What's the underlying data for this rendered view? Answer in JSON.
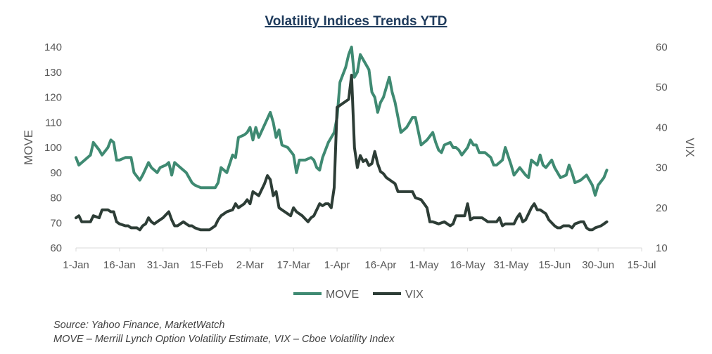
{
  "chart_data": {
    "type": "line",
    "title": "Volatility Indices Trends YTD",
    "x_tick_labels": [
      "1-Jan",
      "16-Jan",
      "31-Jan",
      "15-Feb",
      "2-Mar",
      "17-Mar",
      "1-Apr",
      "16-Apr",
      "1-May",
      "16-May",
      "31-May",
      "15-Jun",
      "30-Jun",
      "15-Jul"
    ],
    "y_left": {
      "label": "MOVE",
      "ticks": [
        60,
        70,
        80,
        90,
        100,
        110,
        120,
        130,
        140
      ],
      "range": [
        60,
        140
      ]
    },
    "y_right": {
      "label": "VIX",
      "ticks": [
        10,
        20,
        30,
        40,
        50,
        60
      ],
      "range": [
        10,
        60
      ]
    },
    "x_range_days": [
      0,
      195
    ],
    "legend_position": "bottom",
    "grid": false,
    "series": [
      {
        "name": "MOVE",
        "axis": "left",
        "color": "#3f8a72",
        "points": [
          [
            0,
            96
          ],
          [
            1,
            93
          ],
          [
            3,
            95
          ],
          [
            5,
            97
          ],
          [
            6,
            102
          ],
          [
            8,
            99
          ],
          [
            9,
            97
          ],
          [
            11,
            100
          ],
          [
            12,
            103
          ],
          [
            13,
            102
          ],
          [
            14,
            95
          ],
          [
            15,
            95
          ],
          [
            17,
            96
          ],
          [
            19,
            96
          ],
          [
            20,
            90
          ],
          [
            22,
            87
          ],
          [
            23,
            89
          ],
          [
            25,
            94
          ],
          [
            26,
            92
          ],
          [
            28,
            90
          ],
          [
            29,
            92
          ],
          [
            31,
            93
          ],
          [
            32,
            94
          ],
          [
            33,
            89
          ],
          [
            34,
            94
          ],
          [
            36,
            92
          ],
          [
            38,
            90
          ],
          [
            40,
            86
          ],
          [
            41,
            85
          ],
          [
            43,
            84
          ],
          [
            45,
            84
          ],
          [
            47,
            84
          ],
          [
            48,
            84
          ],
          [
            49,
            86
          ],
          [
            50,
            92
          ],
          [
            52,
            90
          ],
          [
            54,
            97
          ],
          [
            55,
            96
          ],
          [
            56,
            104
          ],
          [
            58,
            105
          ],
          [
            59,
            106
          ],
          [
            60,
            108
          ],
          [
            61,
            103
          ],
          [
            62,
            108
          ],
          [
            63,
            104
          ],
          [
            65,
            109
          ],
          [
            67,
            114
          ],
          [
            68,
            110
          ],
          [
            69,
            104
          ],
          [
            70,
            107
          ],
          [
            71,
            101
          ],
          [
            73,
            100
          ],
          [
            75,
            97
          ],
          [
            76,
            90
          ],
          [
            77,
            95
          ],
          [
            79,
            95
          ],
          [
            81,
            96
          ],
          [
            82,
            95
          ],
          [
            83,
            92
          ],
          [
            84,
            91
          ],
          [
            85,
            96
          ],
          [
            87,
            102
          ],
          [
            89,
            106
          ],
          [
            90,
            112
          ],
          [
            91,
            126
          ],
          [
            93,
            132
          ],
          [
            94,
            137
          ],
          [
            95,
            140
          ],
          [
            96,
            128
          ],
          [
            97,
            130
          ],
          [
            98,
            137
          ],
          [
            100,
            133
          ],
          [
            101,
            131
          ],
          [
            102,
            122
          ],
          [
            103,
            120
          ],
          [
            104,
            114
          ],
          [
            105,
            118
          ],
          [
            106,
            120
          ],
          [
            108,
            128
          ],
          [
            109,
            122
          ],
          [
            110,
            118
          ],
          [
            111,
            112
          ],
          [
            112,
            106
          ],
          [
            114,
            108
          ],
          [
            115,
            110
          ],
          [
            116,
            112
          ],
          [
            117,
            112
          ],
          [
            119,
            101
          ],
          [
            121,
            103
          ],
          [
            123,
            106
          ],
          [
            124,
            102
          ],
          [
            125,
            99
          ],
          [
            126,
            98
          ],
          [
            127,
            101
          ],
          [
            129,
            102
          ],
          [
            130,
            100
          ],
          [
            131,
            100
          ],
          [
            132,
            99
          ],
          [
            133,
            97
          ],
          [
            135,
            100
          ],
          [
            136,
            103
          ],
          [
            137,
            101
          ],
          [
            138,
            101
          ],
          [
            139,
            98
          ],
          [
            141,
            98
          ],
          [
            143,
            96
          ],
          [
            144,
            93
          ],
          [
            145,
            93
          ],
          [
            147,
            95
          ],
          [
            148,
            100
          ],
          [
            150,
            93
          ],
          [
            151,
            89
          ],
          [
            153,
            92
          ],
          [
            155,
            89
          ],
          [
            156,
            88
          ],
          [
            157,
            95
          ],
          [
            159,
            93
          ],
          [
            160,
            97
          ],
          [
            161,
            93
          ],
          [
            162,
            92
          ],
          [
            164,
            95
          ],
          [
            165,
            92
          ],
          [
            167,
            88
          ],
          [
            169,
            89
          ],
          [
            170,
            93
          ],
          [
            171,
            90
          ],
          [
            172,
            86
          ],
          [
            174,
            87
          ],
          [
            175,
            88
          ],
          [
            176,
            89
          ],
          [
            177,
            87
          ],
          [
            178,
            85
          ],
          [
            179,
            81
          ],
          [
            180,
            85
          ],
          [
            182,
            88
          ],
          [
            183,
            91
          ]
        ]
      },
      {
        "name": "VIX",
        "axis": "right",
        "color": "#2d3d36",
        "points": [
          [
            0,
            17.5
          ],
          [
            1,
            18
          ],
          [
            2,
            16.5
          ],
          [
            4,
            16.5
          ],
          [
            5,
            16.5
          ],
          [
            6,
            18
          ],
          [
            8,
            17.5
          ],
          [
            9,
            19.5
          ],
          [
            11,
            19.5
          ],
          [
            12,
            19
          ],
          [
            13,
            19
          ],
          [
            14,
            16.5
          ],
          [
            15,
            16
          ],
          [
            17,
            15.5
          ],
          [
            18,
            15.5
          ],
          [
            19,
            15
          ],
          [
            21,
            15
          ],
          [
            22,
            14.5
          ],
          [
            23,
            15.5
          ],
          [
            24,
            16
          ],
          [
            25,
            17.5
          ],
          [
            26,
            16.5
          ],
          [
            27,
            16
          ],
          [
            28,
            16.5
          ],
          [
            30,
            17.5
          ],
          [
            32,
            19
          ],
          [
            33,
            17
          ],
          [
            34,
            15.5
          ],
          [
            35,
            15.5
          ],
          [
            36,
            16
          ],
          [
            37,
            16.5
          ],
          [
            39,
            15.5
          ],
          [
            40,
            15.5
          ],
          [
            41,
            15
          ],
          [
            43,
            14.5
          ],
          [
            45,
            14.5
          ],
          [
            46,
            14.5
          ],
          [
            47,
            15
          ],
          [
            48,
            15.5
          ],
          [
            49,
            17
          ],
          [
            50,
            18
          ],
          [
            52,
            19
          ],
          [
            54,
            19.5
          ],
          [
            55,
            21
          ],
          [
            56,
            20
          ],
          [
            58,
            21
          ],
          [
            59,
            22
          ],
          [
            60,
            21
          ],
          [
            61,
            24
          ],
          [
            63,
            23
          ],
          [
            65,
            26
          ],
          [
            66,
            28
          ],
          [
            67,
            27
          ],
          [
            68,
            23
          ],
          [
            69,
            24
          ],
          [
            70,
            20
          ],
          [
            71,
            19.5
          ],
          [
            73,
            18.5
          ],
          [
            74,
            18
          ],
          [
            75,
            20
          ],
          [
            76,
            19
          ],
          [
            78,
            18
          ],
          [
            80,
            16.5
          ],
          [
            81,
            17.5
          ],
          [
            82,
            18
          ],
          [
            84,
            21
          ],
          [
            85,
            20.5
          ],
          [
            86,
            21
          ],
          [
            87,
            21
          ],
          [
            88,
            20
          ],
          [
            89,
            25
          ],
          [
            90,
            45
          ],
          [
            92,
            46
          ],
          [
            94,
            47
          ],
          [
            95,
            53
          ],
          [
            96,
            35
          ],
          [
            97,
            30
          ],
          [
            98,
            33
          ],
          [
            99,
            31.5
          ],
          [
            100,
            32
          ],
          [
            101,
            30.5
          ],
          [
            102,
            31
          ],
          [
            103,
            34
          ],
          [
            104,
            31
          ],
          [
            105,
            29
          ],
          [
            106,
            28.5
          ],
          [
            107,
            27.5
          ],
          [
            109,
            26.5
          ],
          [
            110,
            26
          ],
          [
            111,
            24
          ],
          [
            113,
            24
          ],
          [
            115,
            24
          ],
          [
            116,
            24
          ],
          [
            117,
            22.5
          ],
          [
            119,
            22
          ],
          [
            120,
            21
          ],
          [
            121,
            20
          ],
          [
            122,
            16.5
          ],
          [
            123,
            16.5
          ],
          [
            125,
            16
          ],
          [
            127,
            16.5
          ],
          [
            128,
            16
          ],
          [
            129,
            15.5
          ],
          [
            130,
            16
          ],
          [
            131,
            18
          ],
          [
            133,
            18
          ],
          [
            134,
            18
          ],
          [
            135,
            21
          ],
          [
            136,
            17
          ],
          [
            137,
            17.5
          ],
          [
            139,
            17.5
          ],
          [
            140,
            17.5
          ],
          [
            141,
            17
          ],
          [
            142,
            16.5
          ],
          [
            144,
            16.5
          ],
          [
            145,
            16.5
          ],
          [
            146,
            17.5
          ],
          [
            147,
            15.5
          ],
          [
            148,
            16
          ],
          [
            150,
            16
          ],
          [
            151,
            16
          ],
          [
            152,
            17.5
          ],
          [
            153,
            18.5
          ],
          [
            154,
            16.5
          ],
          [
            155,
            17
          ],
          [
            156,
            18.5
          ],
          [
            157,
            20
          ],
          [
            158,
            21
          ],
          [
            159,
            19.5
          ],
          [
            160,
            19.5
          ],
          [
            161,
            19
          ],
          [
            162,
            18.5
          ],
          [
            163,
            17
          ],
          [
            165,
            15.5
          ],
          [
            166,
            15
          ],
          [
            167,
            15
          ],
          [
            168,
            15.5
          ],
          [
            169,
            15.5
          ],
          [
            170,
            15.5
          ],
          [
            171,
            15
          ],
          [
            172,
            16
          ],
          [
            174,
            16.5
          ],
          [
            175,
            16.5
          ],
          [
            176,
            15
          ],
          [
            177,
            14.5
          ],
          [
            178,
            14.5
          ],
          [
            179,
            15
          ],
          [
            181,
            15.5
          ],
          [
            182,
            16
          ],
          [
            183,
            16.5
          ]
        ]
      }
    ]
  },
  "footnotes": {
    "source": "Source: Yahoo Finance, MarketWatch",
    "definitions": "MOVE – Merrill Lynch Option Volatility Estimate, VIX – Cboe Volatility Index"
  }
}
